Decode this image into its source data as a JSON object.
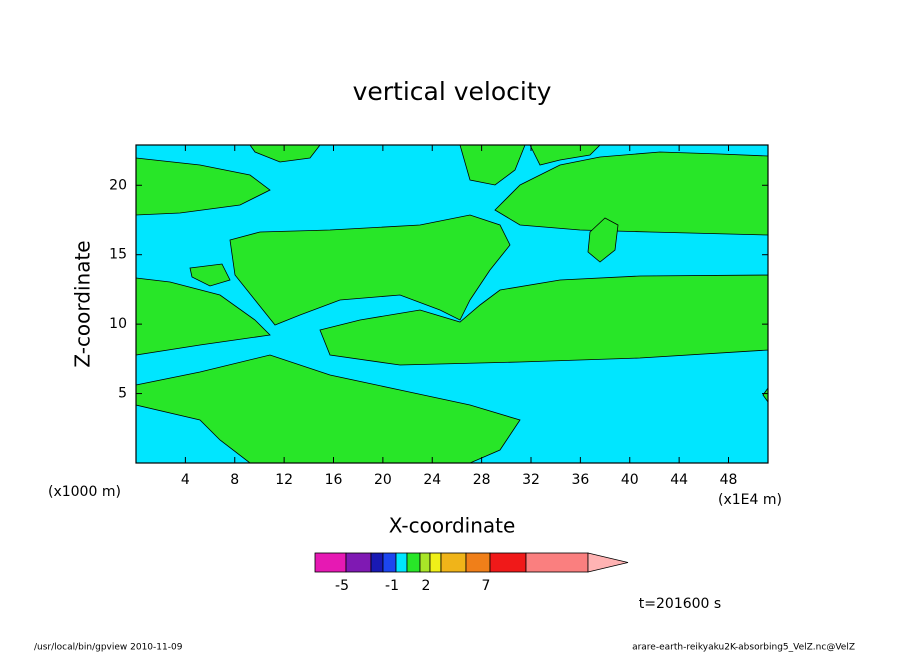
{
  "chart_data": {
    "type": "contour",
    "title": "vertical velocity",
    "xlabel": "X-coordinate",
    "ylabel": "Z-coordinate",
    "x_unit_left": "(x1000 m)",
    "x_unit_right": "(x1E4 m)",
    "xlim": [
      0,
      51.2
    ],
    "xticks": [
      4,
      8,
      12,
      16,
      20,
      24,
      28,
      32,
      36,
      40,
      44,
      48
    ],
    "ylim": [
      0,
      22.9
    ],
    "yticks": [
      5,
      10,
      15,
      20
    ],
    "field_colors": [
      "#00e6ff",
      "#28e628"
    ],
    "colorbar": {
      "colors": [
        "#e619b3",
        "#7f19b3",
        "#1919b3",
        "#1c46f0",
        "#00e6ff",
        "#28e628",
        "#a8e628",
        "#f0f019",
        "#f0b419",
        "#f07f19",
        "#f01919",
        "#fa7f7f",
        "#ffb3b3"
      ],
      "ticks": [
        -5,
        -1,
        2,
        7
      ]
    },
    "time_label": "t=201600 s",
    "footer_left": "/usr/local/bin/gpview  2010-11-09",
    "footer_right": "arare-earth-reikyaku2K-absorbing5_VelZ.nc@VelZ"
  }
}
